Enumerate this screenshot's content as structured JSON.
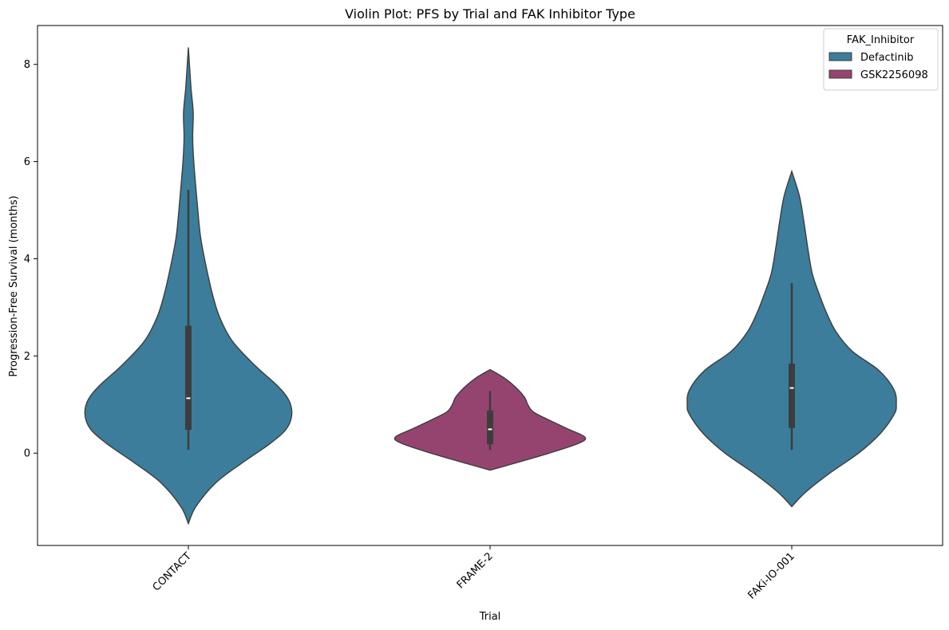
{
  "chart_data": {
    "type": "violin",
    "title": "Violin Plot: PFS by Trial and FAK Inhibitor Type",
    "xlabel": "Trial",
    "ylabel": "Progression-Free Survival (months)",
    "ylim": [
      -1.9,
      8.8
    ],
    "yticks": [
      0,
      2,
      4,
      6,
      8
    ],
    "grid": false,
    "legend": {
      "title": "FAK_Inhibitor",
      "placement": "top-right",
      "entries": [
        {
          "name": "Defactinib",
          "color": "#3b7d9b"
        },
        {
          "name": "GSK2256098",
          "color": "#954470"
        }
      ]
    },
    "categories": [
      "CONTACT",
      "FRAME-2",
      "FAKi-IO-001"
    ],
    "violins": [
      {
        "category": "CONTACT",
        "inhibitor": "Defactinib",
        "color": "#3b7d9b",
        "min_extent": -1.45,
        "max_extent": 8.35,
        "box": {
          "q1": 0.48,
          "median": 1.13,
          "q3": 2.62,
          "whisker_low": 0.07,
          "whisker_high": 5.42
        },
        "density_profile": [
          [
            -1.45,
            0.0
          ],
          [
            -1.1,
            0.07
          ],
          [
            -0.6,
            0.26
          ],
          [
            -0.2,
            0.5
          ],
          [
            0.2,
            0.76
          ],
          [
            0.5,
            0.91
          ],
          [
            0.8,
            0.96
          ],
          [
            1.1,
            0.93
          ],
          [
            1.4,
            0.82
          ],
          [
            1.8,
            0.62
          ],
          [
            2.3,
            0.41
          ],
          [
            2.8,
            0.29
          ],
          [
            3.3,
            0.22
          ],
          [
            4.0,
            0.15
          ],
          [
            4.5,
            0.11
          ],
          [
            5.2,
            0.08
          ],
          [
            6.0,
            0.05
          ],
          [
            6.5,
            0.04
          ],
          [
            7.0,
            0.045
          ],
          [
            7.5,
            0.025
          ],
          [
            8.0,
            0.01
          ],
          [
            8.35,
            0.0
          ]
        ]
      },
      {
        "category": "FRAME-2",
        "inhibitor": "GSK2256098",
        "color": "#954470",
        "min_extent": -0.35,
        "max_extent": 1.72,
        "box": {
          "q1": 0.18,
          "median": 0.49,
          "q3": 0.88,
          "whisker_low": 0.07,
          "whisker_high": 1.28
        },
        "density_profile": [
          [
            -0.35,
            0.0
          ],
          [
            -0.2,
            0.24
          ],
          [
            0.0,
            0.55
          ],
          [
            0.2,
            0.82
          ],
          [
            0.33,
            0.88
          ],
          [
            0.5,
            0.72
          ],
          [
            0.7,
            0.53
          ],
          [
            0.85,
            0.4
          ],
          [
            1.0,
            0.35
          ],
          [
            1.15,
            0.32
          ],
          [
            1.35,
            0.24
          ],
          [
            1.55,
            0.13
          ],
          [
            1.72,
            0.0
          ]
        ]
      },
      {
        "category": "FAKi-IO-001",
        "inhibitor": "Defactinib",
        "color": "#3b7d9b",
        "min_extent": -1.1,
        "max_extent": 5.8,
        "box": {
          "q1": 0.52,
          "median": 1.34,
          "q3": 1.84,
          "whisker_low": 0.07,
          "whisker_high": 3.5
        },
        "density_profile": [
          [
            -1.1,
            0.0
          ],
          [
            -0.8,
            0.13
          ],
          [
            -0.4,
            0.36
          ],
          [
            0.0,
            0.62
          ],
          [
            0.4,
            0.82
          ],
          [
            0.8,
            0.95
          ],
          [
            1.0,
            0.97
          ],
          [
            1.3,
            0.95
          ],
          [
            1.7,
            0.81
          ],
          [
            2.1,
            0.56
          ],
          [
            2.5,
            0.41
          ],
          [
            2.9,
            0.32
          ],
          [
            3.3,
            0.25
          ],
          [
            3.7,
            0.19
          ],
          [
            4.2,
            0.15
          ],
          [
            4.8,
            0.11
          ],
          [
            5.3,
            0.07
          ],
          [
            5.8,
            0.0
          ]
        ]
      }
    ]
  }
}
